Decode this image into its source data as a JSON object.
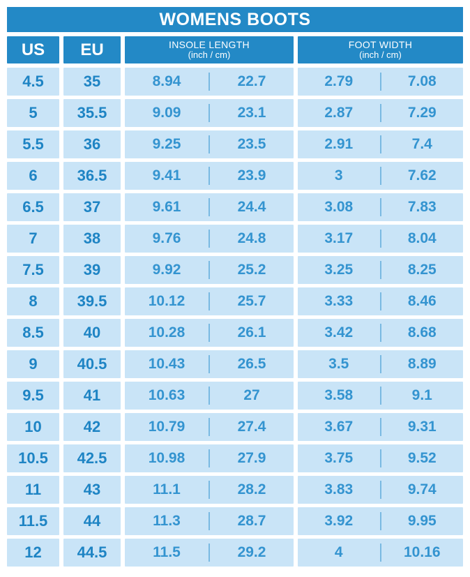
{
  "title": "WOMENS BOOTS",
  "header": {
    "us": "US",
    "eu": "EU",
    "insole_label": "INSOLE LENGTH",
    "insole_unit": "(inch / cm)",
    "foot_label": "FOOT WIDTH",
    "foot_unit": "(inch / cm)"
  },
  "chart_data": {
    "type": "table",
    "title": "WOMENS BOOTS",
    "columns": [
      "US",
      "EU",
      "INSOLE LENGTH (inch)",
      "INSOLE LENGTH (cm)",
      "FOOT WIDTH (inch)",
      "FOOT WIDTH (cm)"
    ],
    "rows": [
      [
        "4.5",
        "35",
        "8.94",
        "22.7",
        "2.79",
        "7.08"
      ],
      [
        "5",
        "35.5",
        "9.09",
        "23.1",
        "2.87",
        "7.29"
      ],
      [
        "5.5",
        "36",
        "9.25",
        "23.5",
        "2.91",
        "7.4"
      ],
      [
        "6",
        "36.5",
        "9.41",
        "23.9",
        "3",
        "7.62"
      ],
      [
        "6.5",
        "37",
        "9.61",
        "24.4",
        "3.08",
        "7.83"
      ],
      [
        "7",
        "38",
        "9.76",
        "24.8",
        "3.17",
        "8.04"
      ],
      [
        "7.5",
        "39",
        "9.92",
        "25.2",
        "3.25",
        "8.25"
      ],
      [
        "8",
        "39.5",
        "10.12",
        "25.7",
        "3.33",
        "8.46"
      ],
      [
        "8.5",
        "40",
        "10.28",
        "26.1",
        "3.42",
        "8.68"
      ],
      [
        "9",
        "40.5",
        "10.43",
        "26.5",
        "3.5",
        "8.89"
      ],
      [
        "9.5",
        "41",
        "10.63",
        "27",
        "3.58",
        "9.1"
      ],
      [
        "10",
        "42",
        "10.79",
        "27.4",
        "3.67",
        "9.31"
      ],
      [
        "10.5",
        "42.5",
        "10.98",
        "27.9",
        "3.75",
        "9.52"
      ],
      [
        "11",
        "43",
        "11.1",
        "28.2",
        "3.83",
        "9.74"
      ],
      [
        "11.5",
        "44",
        "11.3",
        "28.7",
        "3.92",
        "9.95"
      ],
      [
        "12",
        "44.5",
        "11.5",
        "29.2",
        "4",
        "10.16"
      ]
    ]
  },
  "colors": {
    "header_blue": "#2389C6",
    "cell_bg": "#C9E4F7",
    "value_text": "#3494D0",
    "size_text": "#1E84C4",
    "divider": "#79B9E2",
    "page_bg": "#FFFFFF"
  }
}
